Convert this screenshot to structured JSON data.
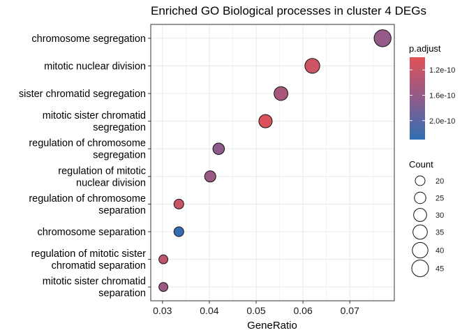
{
  "chart_data": {
    "type": "scatter",
    "title": "Enriched GO Biological processes in cluster 4 DEGs",
    "xlabel": "GeneRatio",
    "ylabel": "",
    "xlim": [
      0.0275,
      0.0795
    ],
    "xticks": [
      0.03,
      0.04,
      0.05,
      0.06,
      0.07
    ],
    "xtick_labels": [
      "0.03",
      "0.04",
      "0.05",
      "0.06",
      "0.07"
    ],
    "grid": true,
    "legend_position": "right",
    "categories": [
      "chromosome segregation",
      "mitotic nuclear division",
      "sister chromatid segregation",
      "mitotic sister chromatid\nsegregation",
      "regulation of chromosome\nsegregation",
      "regulation of mitotic\nnuclear division",
      "regulation of chromosome\nseparation",
      "chromosome separation",
      "regulation of mitotic sister\nchromatid separation",
      "mitotic sister chromatid\nseparation"
    ],
    "points": [
      {
        "term": "chromosome segregation",
        "gene_ratio": 0.077,
        "count": 46,
        "p_adjust": 1.6e-10
      },
      {
        "term": "mitotic nuclear division",
        "gene_ratio": 0.062,
        "count": 37,
        "p_adjust": 1.15e-10
      },
      {
        "term": "sister chromatid segregation",
        "gene_ratio": 0.0553,
        "count": 33,
        "p_adjust": 1.45e-10
      },
      {
        "term": "mitotic sister chromatid segregation",
        "gene_ratio": 0.052,
        "count": 31,
        "p_adjust": 1.05e-10
      },
      {
        "term": "regulation of chromosome segregation",
        "gene_ratio": 0.042,
        "count": 25,
        "p_adjust": 1.65e-10
      },
      {
        "term": "regulation of mitotic nuclear division",
        "gene_ratio": 0.0402,
        "count": 24,
        "p_adjust": 1.55e-10
      },
      {
        "term": "regulation of chromosome separation",
        "gene_ratio": 0.0335,
        "count": 20,
        "p_adjust": 1.2e-10
      },
      {
        "term": "chromosome separation",
        "gene_ratio": 0.0335,
        "count": 20,
        "p_adjust": 2.25e-10
      },
      {
        "term": "regulation of mitotic sister chromatid separation",
        "gene_ratio": 0.0302,
        "count": 18,
        "p_adjust": 1.3e-10
      },
      {
        "term": "mitotic sister chromatid separation",
        "gene_ratio": 0.0302,
        "count": 18,
        "p_adjust": 1.55e-10
      }
    ],
    "color_legend": {
      "title": "p.adjust",
      "range": [
        1e-10,
        2.3e-10
      ],
      "ticks": [
        1.2e-10,
        1.6e-10,
        2e-10
      ],
      "tick_labels": [
        "1.2e-10",
        "1.6e-10",
        "2.0e-10"
      ],
      "low_color": "#e05256",
      "mid_color": "#8f5b8b",
      "high_color": "#2f6fb4"
    },
    "size_legend": {
      "title": "Count",
      "values": [
        20,
        25,
        30,
        35,
        40,
        45
      ],
      "labels": [
        "20",
        "25",
        "30",
        "35",
        "40",
        "45"
      ]
    }
  }
}
